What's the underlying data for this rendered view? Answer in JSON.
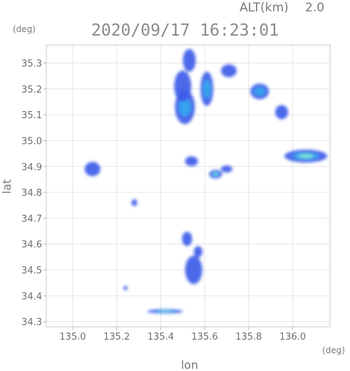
{
  "header": {
    "altitude_label": "ALT(km)",
    "altitude_value": "2.0",
    "timestamp": "2020/09/17 16:23:01"
  },
  "axes": {
    "y_unit": "(deg)",
    "x_unit": "(deg)",
    "y_label": "lat",
    "x_label": "lon"
  },
  "colors": {
    "frame": "#c8c8c8",
    "grid": "#e6e6e6",
    "level_low": "#3e5ce8",
    "level_mid": "#35a8f0",
    "level_high": "#86e9cf"
  },
  "chart_data": {
    "type": "heatmap",
    "title": "2020/09/17 16:23:01",
    "xlabel": "lon",
    "ylabel": "lat",
    "xlim": [
      134.88,
      136.17
    ],
    "ylim": [
      34.28,
      35.37
    ],
    "x_ticks": [
      135.0,
      135.2,
      135.4,
      135.6,
      135.8,
      136.0
    ],
    "x_tick_labels": [
      "135.0",
      "135.2",
      "135.4",
      "135.6",
      "135.8",
      "136.0"
    ],
    "y_ticks": [
      34.3,
      34.4,
      34.5,
      34.6,
      34.7,
      34.8,
      34.9,
      35.0,
      35.1,
      35.2,
      35.3
    ],
    "y_tick_labels": [
      "34.3",
      "34.4",
      "34.5",
      "34.6",
      "34.7",
      "34.8",
      "34.9",
      "35.0",
      "35.1",
      "35.2",
      "35.3"
    ],
    "grid": true,
    "echo_cells": [
      {
        "lon": 135.51,
        "lat": 35.13,
        "level": 2
      },
      {
        "lon": 135.5,
        "lat": 35.21,
        "level": 1
      },
      {
        "lon": 135.53,
        "lat": 35.31,
        "level": 1
      },
      {
        "lon": 135.61,
        "lat": 35.2,
        "level": 2
      },
      {
        "lon": 135.71,
        "lat": 35.27,
        "level": 1
      },
      {
        "lon": 135.85,
        "lat": 35.19,
        "level": 2
      },
      {
        "lon": 135.95,
        "lat": 35.11,
        "level": 1
      },
      {
        "lon": 136.06,
        "lat": 34.94,
        "level": 3
      },
      {
        "lon": 135.65,
        "lat": 34.87,
        "level": 3
      },
      {
        "lon": 135.54,
        "lat": 34.92,
        "level": 1
      },
      {
        "lon": 135.7,
        "lat": 34.89,
        "level": 1
      },
      {
        "lon": 135.09,
        "lat": 34.89,
        "level": 1
      },
      {
        "lon": 135.52,
        "lat": 34.62,
        "level": 1
      },
      {
        "lon": 135.55,
        "lat": 34.5,
        "level": 1
      },
      {
        "lon": 135.57,
        "lat": 34.57,
        "level": 1
      },
      {
        "lon": 135.42,
        "lat": 34.34,
        "level": 3
      },
      {
        "lon": 135.28,
        "lat": 34.76,
        "level": 1
      },
      {
        "lon": 135.24,
        "lat": 34.43,
        "level": 1
      }
    ]
  }
}
